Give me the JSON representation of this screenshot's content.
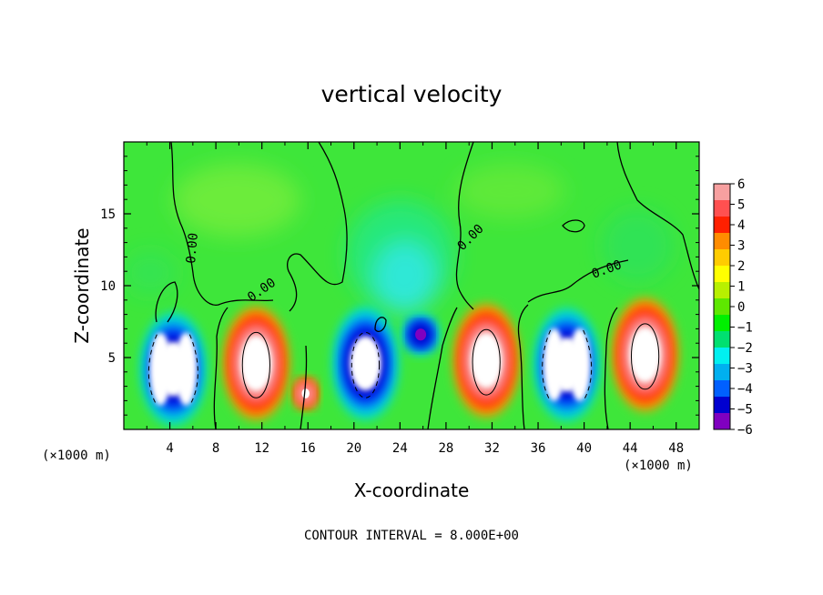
{
  "chart_data": {
    "type": "heatmap",
    "title": "vertical velocity",
    "xlabel": "X-coordinate",
    "ylabel": "Z-coordinate",
    "x_unit": "(×1000 m)",
    "xlim": [
      0,
      50
    ],
    "ylim": [
      0,
      20
    ],
    "x_ticks": [
      4,
      8,
      12,
      16,
      20,
      24,
      28,
      32,
      36,
      40,
      44,
      48
    ],
    "y_ticks": [
      5,
      10,
      15
    ],
    "colorbar": {
      "min": -6,
      "max": 6,
      "ticks": [
        "6",
        "5",
        "4",
        "3",
        "2",
        "1",
        "0",
        "−1",
        "−2",
        "−3",
        "−4",
        "−5",
        "−6"
      ],
      "colors": [
        "#f7a0a0",
        "#ff5050",
        "#ff2000",
        "#ff8c00",
        "#ffcc00",
        "#ffff00",
        "#b8f000",
        "#5ee800",
        "#00f000",
        "#00e070",
        "#00f0f0",
        "#00b0f0",
        "#0060ff",
        "#0000d0",
        "#8000c0"
      ]
    },
    "contour_labels": [
      "0.00",
      "0.00",
      "0.00",
      "0.00"
    ],
    "cells": [
      {
        "x": 4.3,
        "z": 4.2,
        "type": "updown",
        "sign": -1,
        "magnitude": 8
      },
      {
        "x": 11.5,
        "z": 4.6,
        "type": "single",
        "sign": 1,
        "magnitude": 8
      },
      {
        "x": 15.8,
        "z": 2.5,
        "type": "single",
        "sign": 1,
        "magnitude": 4
      },
      {
        "x": 21.0,
        "z": 4.6,
        "type": "single",
        "sign": -1,
        "magnitude": 8
      },
      {
        "x": 25.8,
        "z": 6.6,
        "type": "single",
        "sign": -1,
        "magnitude": 6
      },
      {
        "x": 31.5,
        "z": 4.8,
        "type": "single",
        "sign": 1,
        "magnitude": 8
      },
      {
        "x": 38.5,
        "z": 4.5,
        "type": "updown",
        "sign": -1,
        "magnitude": 8
      },
      {
        "x": 45.3,
        "z": 5.2,
        "type": "single",
        "sign": 1,
        "magnitude": 8
      }
    ],
    "footer": "CONTOUR INTERVAL = 8.000E+00"
  }
}
